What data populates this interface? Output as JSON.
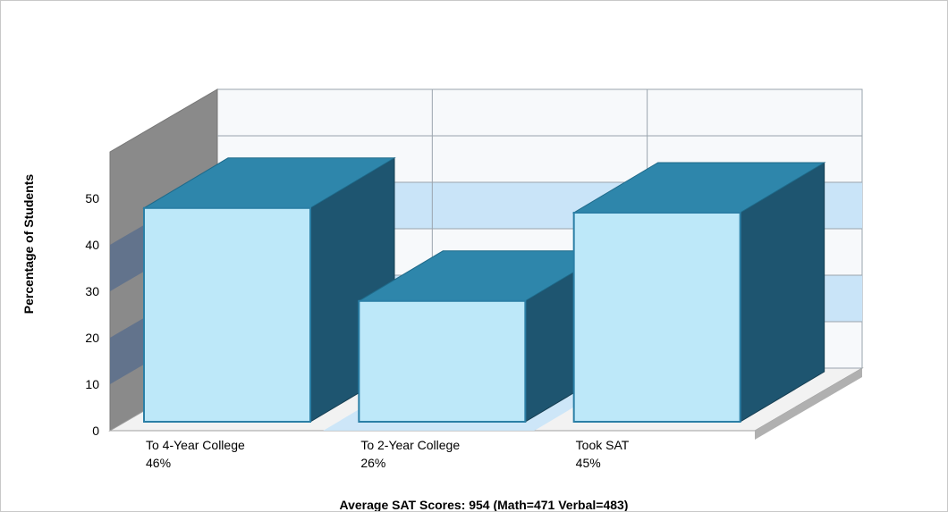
{
  "chart_data": {
    "type": "bar",
    "categories": [
      "To 4-Year College",
      "To 2-Year College",
      "Took SAT"
    ],
    "values": [
      46,
      26,
      45
    ],
    "data_labels": [
      "46%",
      "26%",
      "45%"
    ],
    "ylabel": "Percentage of Students",
    "xlabel": "Average SAT Scores: 954 (Math=471 Verbal=483)",
    "ylim": [
      0,
      50
    ],
    "yticks": [
      0,
      10,
      20,
      30,
      40,
      50
    ],
    "grid": true,
    "style": "3d",
    "colors": {
      "bar_front": "#bde8f9",
      "bar_top": "#2e86ab",
      "bar_side": "#1e5570",
      "band": "#c9e4f8",
      "left_wall": "#8a8a8a",
      "left_wall_band": "#5a6e8c"
    }
  }
}
